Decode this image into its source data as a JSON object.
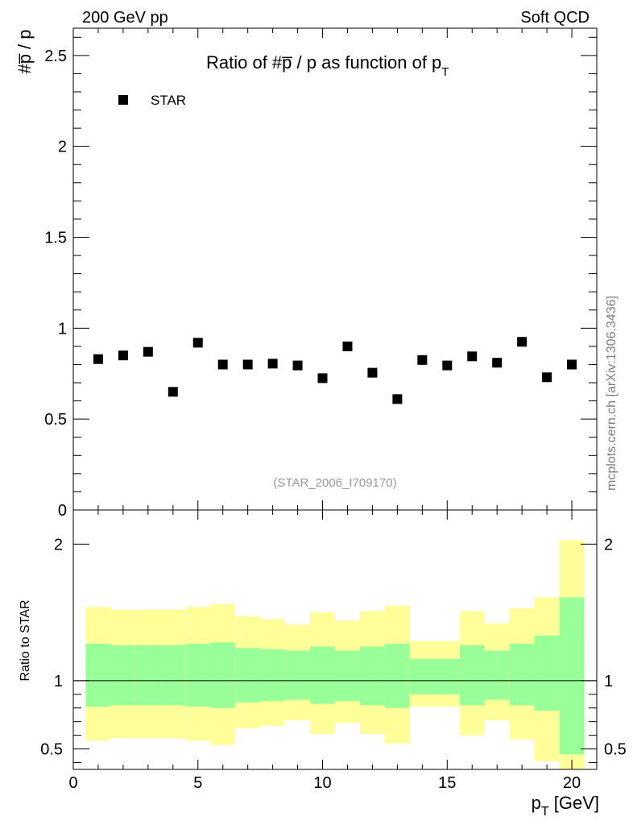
{
  "header": {
    "left": "200 GeV pp",
    "right": "Soft QCD"
  },
  "side_label": "mcplots.cern.ch [arXiv:1306.3436]",
  "analysis_label": "(STAR_2006_I709170)",
  "colors": {
    "band_outer": "#ffff99",
    "band_inner": "#99ff99",
    "marker": "#000000",
    "side_label": "#808080",
    "analysis_label": "#999999"
  },
  "chart_data": [
    {
      "type": "scatter",
      "title_main": "Ratio of #p̅ / p as function of p",
      "title_sub": "T",
      "ylabel_main": "#p̅ / p",
      "xlim": [
        0,
        21
      ],
      "ylim": [
        0,
        2.65
      ],
      "yticks": [
        0.5,
        1,
        1.5,
        2,
        2.5
      ],
      "ytick_labels": [
        "0.5",
        "1",
        "1.5",
        "2",
        "2.5"
      ],
      "y_extra_label": "0",
      "legend": {
        "entries": [
          "STAR"
        ],
        "position": "top-left"
      },
      "series": [
        {
          "name": "STAR",
          "marker": "square",
          "x": [
            1,
            2,
            3,
            4,
            5,
            6,
            7,
            8,
            9,
            10,
            11,
            12,
            13,
            14,
            15,
            16,
            17,
            18,
            19,
            20
          ],
          "y": [
            0.83,
            0.85,
            0.87,
            0.65,
            0.92,
            0.8,
            0.8,
            0.805,
            0.795,
            0.725,
            0.9,
            0.755,
            0.61,
            0.825,
            0.795,
            0.845,
            0.81,
            0.925,
            0.73,
            0.8
          ]
        }
      ]
    },
    {
      "type": "area",
      "ylabel": "Ratio to STAR",
      "xlabel_main": "p",
      "xlabel_sub": "T",
      "xlabel_unit": " [GeV]",
      "xlim": [
        0,
        21
      ],
      "ylim": [
        0.35,
        2.25
      ],
      "xticks": [
        0,
        5,
        10,
        15,
        20
      ],
      "xtick_labels": [
        "0",
        "5",
        "10",
        "15",
        "20"
      ],
      "yticks": [
        0.5,
        1,
        2
      ],
      "ytick_labels": [
        "0.5",
        "1",
        "2"
      ],
      "reference_line": 1,
      "bin_edges": [
        0.5,
        1.5,
        2.5,
        3.5,
        4.5,
        5.5,
        6.5,
        7.5,
        8.5,
        9.5,
        10.5,
        11.5,
        12.5,
        13.5,
        14.5,
        15.5,
        16.5,
        17.5,
        18.5,
        19.5,
        20.5
      ],
      "outer_band": {
        "upper": [
          1.54,
          1.52,
          1.52,
          1.52,
          1.54,
          1.56,
          1.47,
          1.45,
          1.41,
          1.5,
          1.44,
          1.51,
          1.55,
          1.29,
          1.29,
          1.51,
          1.42,
          1.53,
          1.61,
          2.03
        ],
        "lower": [
          0.56,
          0.58,
          0.58,
          0.58,
          0.56,
          0.53,
          0.65,
          0.67,
          0.71,
          0.61,
          0.69,
          0.61,
          0.54,
          0.81,
          0.81,
          0.6,
          0.71,
          0.57,
          0.41,
          0.35
        ]
      },
      "inner_band": {
        "upper": [
          1.27,
          1.26,
          1.26,
          1.26,
          1.27,
          1.28,
          1.24,
          1.23,
          1.22,
          1.25,
          1.22,
          1.25,
          1.27,
          1.16,
          1.16,
          1.26,
          1.22,
          1.27,
          1.33,
          1.61
        ],
        "lower": [
          0.81,
          0.82,
          0.82,
          0.82,
          0.81,
          0.8,
          0.84,
          0.85,
          0.86,
          0.83,
          0.85,
          0.82,
          0.8,
          0.9,
          0.9,
          0.82,
          0.86,
          0.82,
          0.78,
          0.46
        ]
      }
    }
  ]
}
